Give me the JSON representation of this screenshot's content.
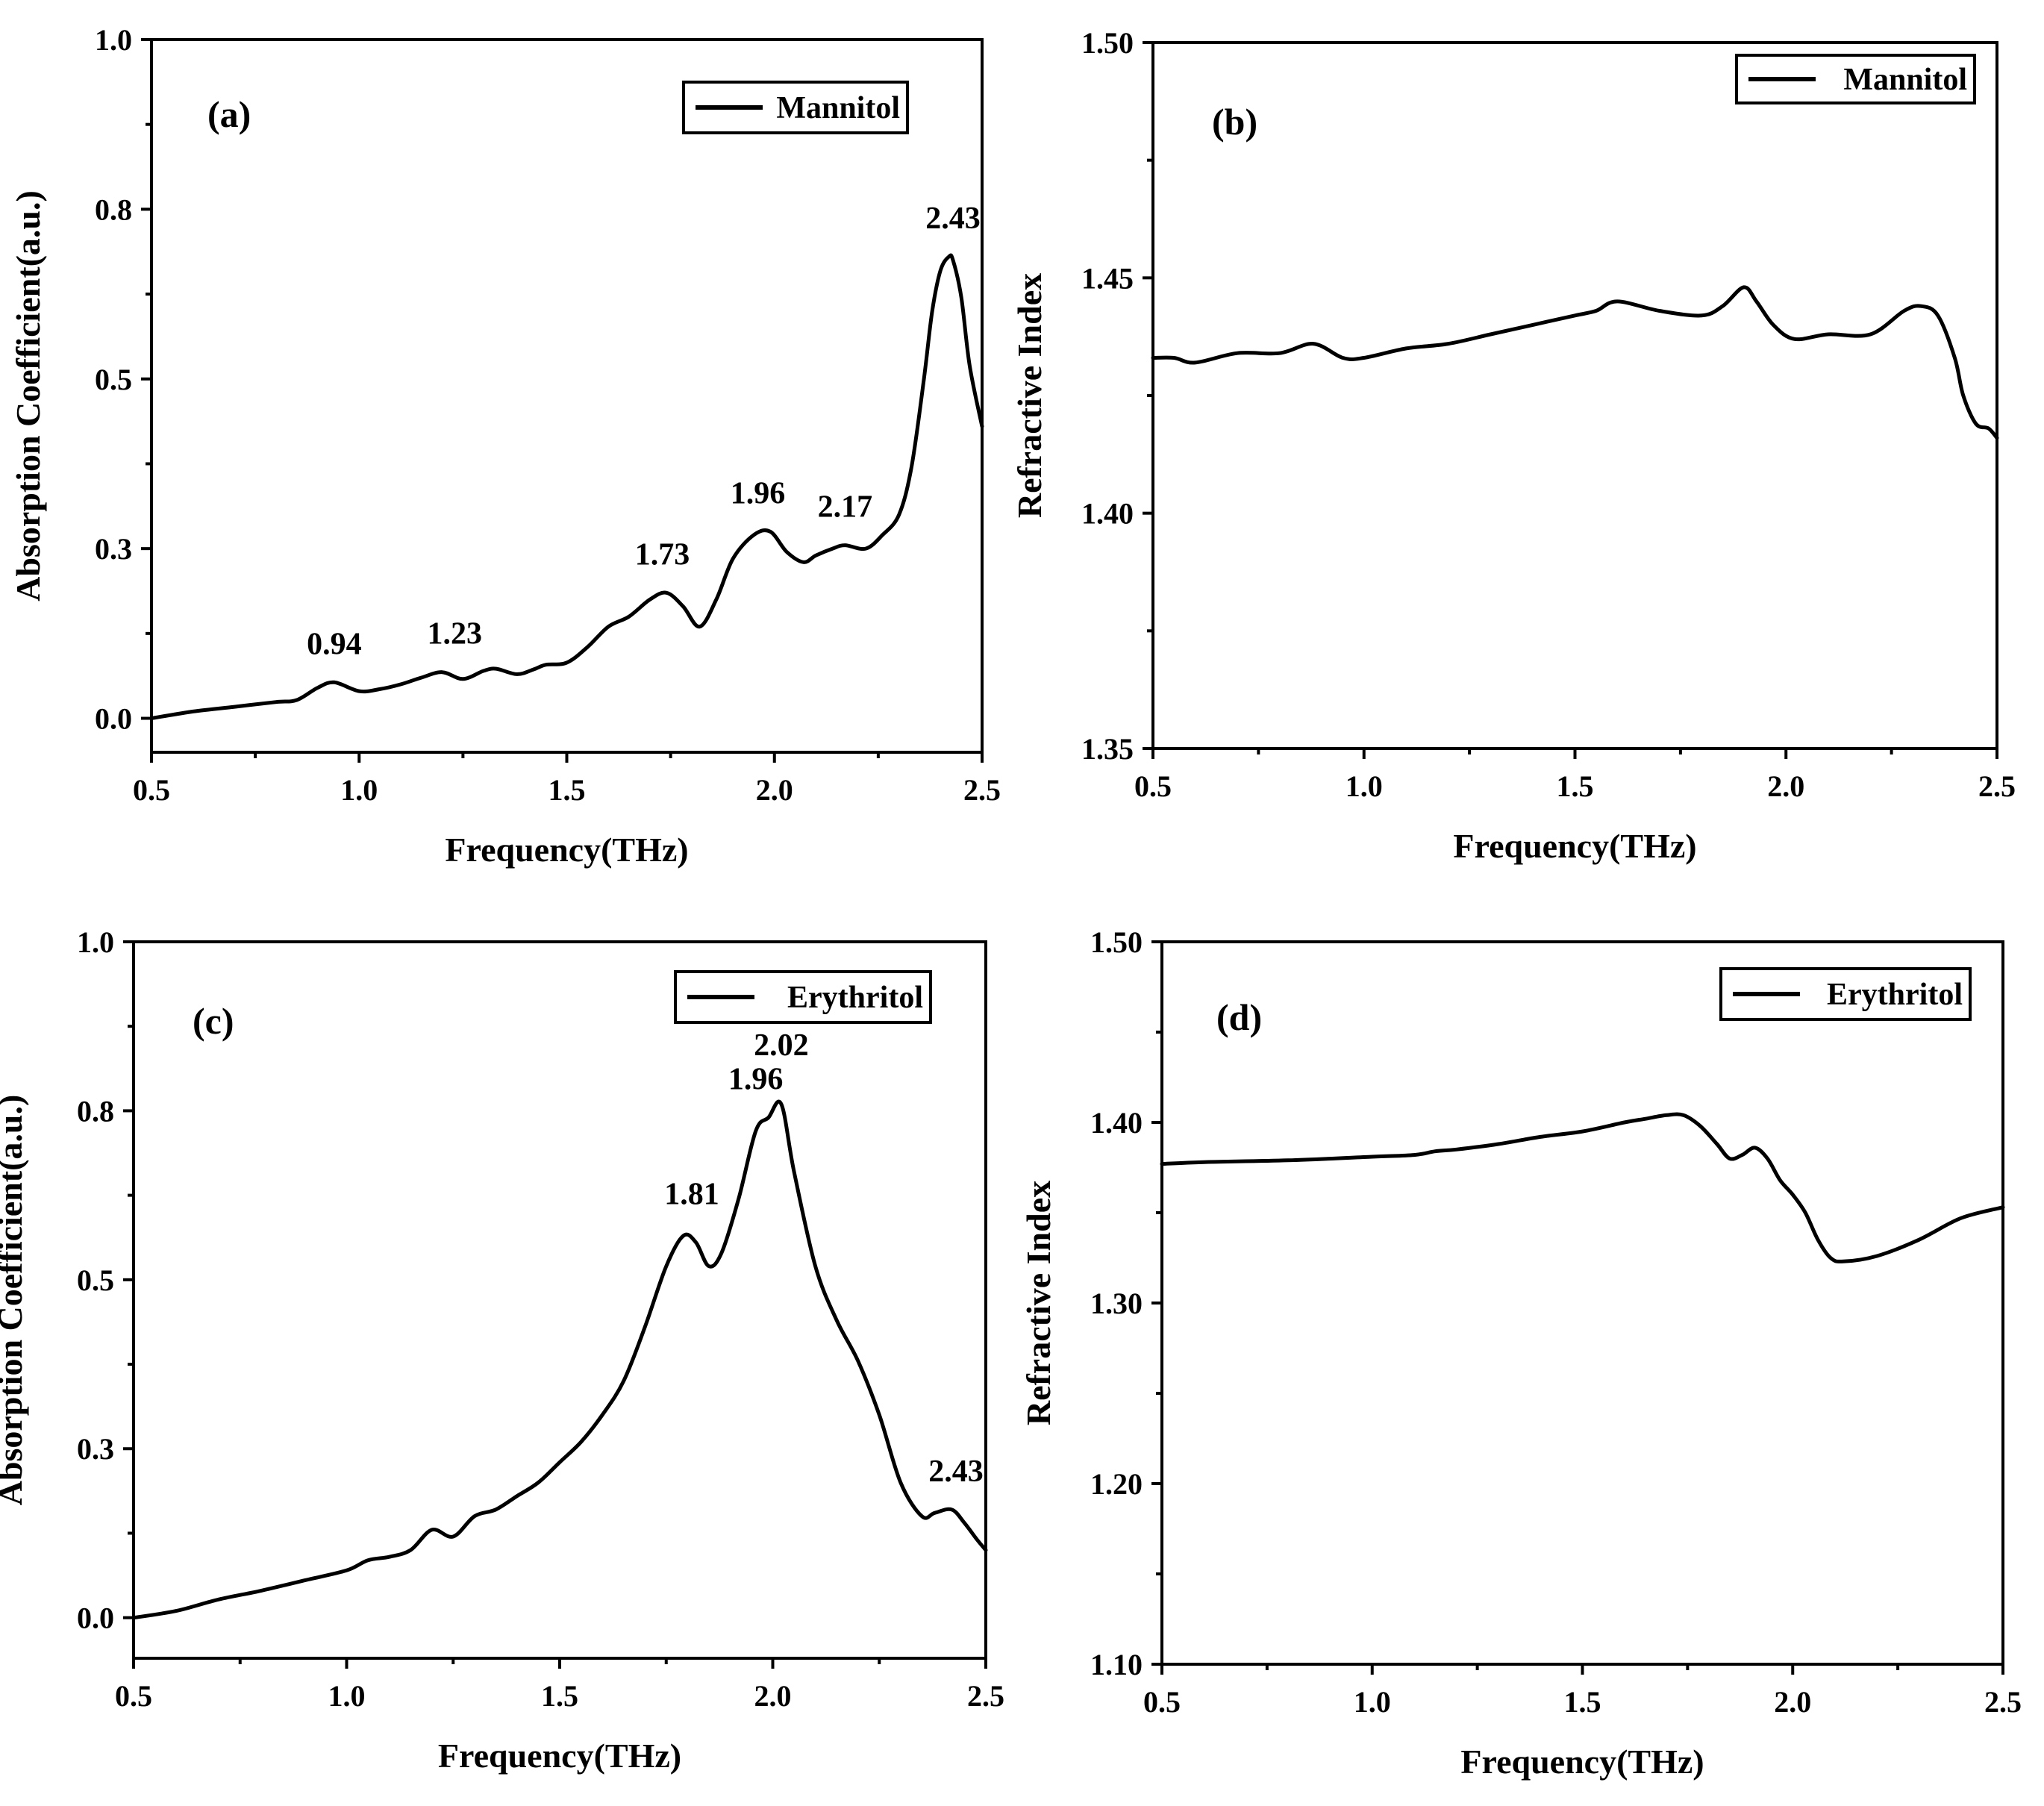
{
  "chart_data": [
    {
      "type": "line",
      "panel_label": "(a)",
      "xlabel": "Frequency(THz)",
      "ylabel": "Absorption Coefficient(a.u.)",
      "xlim": [
        0.5,
        2.5
      ],
      "ylim": [
        -0.05,
        1.0
      ],
      "xticks": [
        "0.5",
        "1.0",
        "1.5",
        "2.0",
        "2.5"
      ],
      "xtick_values": [
        0.5,
        1.0,
        1.5,
        2.0,
        2.5
      ],
      "yticks": [
        "0.0",
        "0.3",
        "0.5",
        "0.8",
        "1.0"
      ],
      "ytick_values": [
        0.0,
        0.25,
        0.5,
        0.75,
        1.0
      ],
      "legend": "Mannitol",
      "legend_position": "top-right",
      "annotations": [
        {
          "text": "0.94",
          "x": 0.94,
          "y": 0.053
        },
        {
          "text": "1.23",
          "x": 1.23,
          "y": 0.068
        },
        {
          "text": "1.73",
          "x": 1.73,
          "y": 0.185
        },
        {
          "text": "1.96",
          "x": 1.96,
          "y": 0.275
        },
        {
          "text": "2.17",
          "x": 2.17,
          "y": 0.255
        },
        {
          "text": "2.43",
          "x": 2.43,
          "y": 0.68
        }
      ],
      "series": [
        {
          "name": "Mannitol",
          "x": [
            0.5,
            0.6,
            0.7,
            0.8,
            0.85,
            0.9,
            0.94,
            1.0,
            1.05,
            1.1,
            1.15,
            1.2,
            1.25,
            1.3,
            1.33,
            1.38,
            1.42,
            1.45,
            1.5,
            1.55,
            1.6,
            1.65,
            1.7,
            1.74,
            1.78,
            1.82,
            1.86,
            1.9,
            1.95,
            1.99,
            2.03,
            2.07,
            2.1,
            2.14,
            2.17,
            2.22,
            2.26,
            2.3,
            2.33,
            2.36,
            2.38,
            2.4,
            2.42,
            2.43,
            2.45,
            2.47,
            2.5
          ],
          "y": [
            0.0,
            0.01,
            0.017,
            0.024,
            0.027,
            0.045,
            0.053,
            0.04,
            0.043,
            0.05,
            0.06,
            0.068,
            0.058,
            0.07,
            0.073,
            0.065,
            0.072,
            0.079,
            0.082,
            0.105,
            0.135,
            0.15,
            0.175,
            0.185,
            0.165,
            0.135,
            0.175,
            0.235,
            0.27,
            0.275,
            0.245,
            0.23,
            0.24,
            0.25,
            0.255,
            0.25,
            0.27,
            0.3,
            0.37,
            0.5,
            0.6,
            0.66,
            0.68,
            0.675,
            0.62,
            0.52,
            0.43
          ]
        }
      ]
    },
    {
      "type": "line",
      "panel_label": "(b)",
      "xlabel": "Frequency(THz)",
      "ylabel": "Refractive Index",
      "xlim": [
        0.5,
        2.5
      ],
      "ylim": [
        1.35,
        1.5
      ],
      "xticks": [
        "0.5",
        "1.0",
        "1.5",
        "2.0",
        "2.5"
      ],
      "xtick_values": [
        0.5,
        1.0,
        1.5,
        2.0,
        2.5
      ],
      "yticks": [
        "1.35",
        "1.40",
        "1.45",
        "1.50"
      ],
      "ytick_values": [
        1.35,
        1.4,
        1.45,
        1.5
      ],
      "legend": "Mannitol",
      "legend_position": "top-right",
      "series": [
        {
          "name": "Mannitol",
          "x": [
            0.5,
            0.55,
            0.6,
            0.7,
            0.8,
            0.88,
            0.95,
            1.0,
            1.1,
            1.2,
            1.3,
            1.4,
            1.5,
            1.55,
            1.6,
            1.7,
            1.8,
            1.85,
            1.9,
            1.93,
            1.97,
            2.02,
            2.1,
            2.2,
            2.28,
            2.32,
            2.36,
            2.4,
            2.42,
            2.45,
            2.48,
            2.5
          ],
          "y": [
            1.433,
            1.433,
            1.432,
            1.434,
            1.434,
            1.436,
            1.433,
            1.433,
            1.435,
            1.436,
            1.438,
            1.44,
            1.442,
            1.443,
            1.445,
            1.443,
            1.442,
            1.444,
            1.448,
            1.445,
            1.44,
            1.437,
            1.438,
            1.438,
            1.443,
            1.444,
            1.442,
            1.433,
            1.425,
            1.419,
            1.418,
            1.416
          ]
        }
      ]
    },
    {
      "type": "line",
      "panel_label": "(c)",
      "xlabel": "Frequency(THz)",
      "ylabel": "Absorption Coefficient(a.u.)",
      "xlim": [
        0.5,
        2.5
      ],
      "ylim": [
        -0.06,
        1.0
      ],
      "xticks": [
        "0.5",
        "1.0",
        "1.5",
        "2.0",
        "2.5"
      ],
      "xtick_values": [
        0.5,
        1.0,
        1.5,
        2.0,
        2.5
      ],
      "yticks": [
        "0.0",
        "0.3",
        "0.5",
        "0.8",
        "1.0"
      ],
      "ytick_values": [
        0.0,
        0.25,
        0.5,
        0.75,
        1.0
      ],
      "legend": "Erythritol",
      "legend_position": "top-right",
      "annotations": [
        {
          "text": "1.81",
          "x": 1.81,
          "y": 0.57
        },
        {
          "text": "1.96",
          "x": 1.96,
          "y": 0.74
        },
        {
          "text": "2.02",
          "x": 2.02,
          "y": 0.79
        },
        {
          "text": "2.43",
          "x": 2.43,
          "y": 0.16
        }
      ],
      "series": [
        {
          "name": "Erythritol",
          "x": [
            0.5,
            0.6,
            0.7,
            0.8,
            0.9,
            1.0,
            1.05,
            1.1,
            1.15,
            1.2,
            1.25,
            1.3,
            1.35,
            1.4,
            1.45,
            1.5,
            1.55,
            1.6,
            1.65,
            1.7,
            1.75,
            1.79,
            1.82,
            1.85,
            1.88,
            1.92,
            1.96,
            1.99,
            2.02,
            2.05,
            2.1,
            2.15,
            2.2,
            2.25,
            2.3,
            2.35,
            2.38,
            2.42,
            2.45,
            2.48,
            2.5
          ],
          "y": [
            0.0,
            0.01,
            0.027,
            0.04,
            0.055,
            0.07,
            0.085,
            0.09,
            0.1,
            0.13,
            0.12,
            0.15,
            0.16,
            0.18,
            0.2,
            0.23,
            0.26,
            0.3,
            0.35,
            0.43,
            0.52,
            0.565,
            0.555,
            0.52,
            0.54,
            0.62,
            0.72,
            0.74,
            0.76,
            0.66,
            0.52,
            0.44,
            0.38,
            0.3,
            0.2,
            0.15,
            0.155,
            0.16,
            0.14,
            0.115,
            0.1
          ]
        }
      ]
    },
    {
      "type": "line",
      "panel_label": "(d)",
      "xlabel": "Frequency(THz)",
      "ylabel": "Refractive Index",
      "xlim": [
        0.5,
        2.5
      ],
      "ylim": [
        1.1,
        1.5
      ],
      "xticks": [
        "0.5",
        "1.0",
        "1.5",
        "2.0",
        "2.5"
      ],
      "xtick_values": [
        0.5,
        1.0,
        1.5,
        2.0,
        2.5
      ],
      "yticks": [
        "1.10",
        "1.20",
        "1.30",
        "1.40",
        "1.50"
      ],
      "ytick_values": [
        1.1,
        1.2,
        1.3,
        1.4,
        1.5
      ],
      "legend": "Erythritol",
      "legend_position": "top-right",
      "series": [
        {
          "name": "Erythritol",
          "x": [
            0.5,
            0.6,
            0.8,
            1.0,
            1.1,
            1.15,
            1.2,
            1.3,
            1.4,
            1.5,
            1.6,
            1.65,
            1.7,
            1.74,
            1.78,
            1.82,
            1.85,
            1.88,
            1.91,
            1.94,
            1.97,
            2.0,
            2.03,
            2.06,
            2.09,
            2.12,
            2.2,
            2.3,
            2.4,
            2.5
          ],
          "y": [
            1.377,
            1.378,
            1.379,
            1.381,
            1.382,
            1.384,
            1.385,
            1.388,
            1.392,
            1.395,
            1.4,
            1.402,
            1.404,
            1.404,
            1.398,
            1.388,
            1.38,
            1.382,
            1.386,
            1.38,
            1.368,
            1.36,
            1.35,
            1.335,
            1.325,
            1.323,
            1.326,
            1.335,
            1.347,
            1.353
          ]
        }
      ]
    }
  ]
}
